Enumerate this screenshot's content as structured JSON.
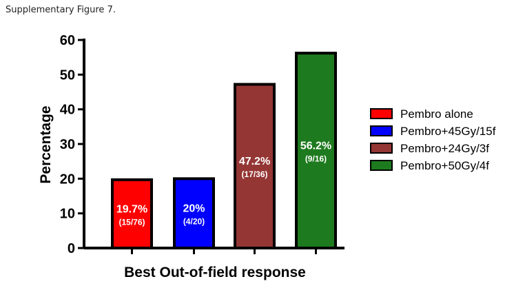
{
  "caption": "Supplementary Figure 7.",
  "chart_data": {
    "type": "bar",
    "categories": [
      "Pembro alone",
      "Pembro+45Gy/15f",
      "Pembro+24Gy/3f",
      "Pembro+50Gy/4f"
    ],
    "values": [
      19.7,
      20,
      47.2,
      56.2
    ],
    "value_labels": [
      "19.7%",
      "20%",
      "47.2%",
      "56.2%"
    ],
    "fraction_labels": [
      "(15/76)",
      "(4/20)",
      "(17/36)",
      "(9/16)"
    ],
    "colors": [
      "#ff0000",
      "#0000ff",
      "#943634",
      "#1e7a1e"
    ],
    "ylim": [
      0,
      60
    ],
    "yticks": [
      0,
      10,
      20,
      30,
      40,
      50,
      60
    ],
    "ylabel": "Percentage",
    "xlabel": "Best Out-of-field response",
    "legend": {
      "placement": "right",
      "entries": [
        "Pembro alone",
        "Pembro+45Gy/15f",
        "Pembro+24Gy/3f",
        "Pembro+50Gy/4f"
      ]
    },
    "grid": false
  }
}
